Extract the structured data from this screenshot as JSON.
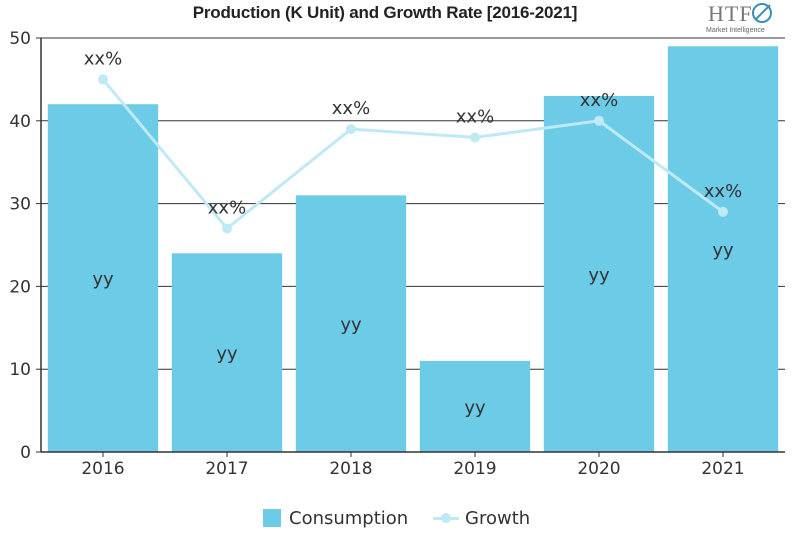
{
  "title": "Production (K Unit) and Growth Rate [2016-2021]",
  "logo": {
    "main": "HTF",
    "sub": "Market Intelligence"
  },
  "colors": {
    "bar": "#6ccbe6",
    "line": "#bfeaf5",
    "axis": "#333333",
    "grid": "#333333",
    "text": "#333333"
  },
  "chart_data": {
    "type": "bar",
    "categories": [
      "2016",
      "2017",
      "2018",
      "2019",
      "2020",
      "2021"
    ],
    "ylim": [
      0,
      50
    ],
    "yticks": [
      0,
      10,
      20,
      30,
      40,
      50
    ],
    "grid": true,
    "legend_position": "bottom",
    "series": [
      {
        "name": "Consumption",
        "type": "bar",
        "values": [
          42,
          24,
          31,
          11,
          43,
          49
        ],
        "labels": [
          "yy",
          "yy",
          "yy",
          "yy",
          "yy",
          "yy"
        ]
      },
      {
        "name": "Growth",
        "type": "line",
        "values": [
          45,
          27,
          39,
          38,
          40,
          29
        ],
        "labels": [
          "xx%",
          "xx%",
          "xx%",
          "xx%",
          "xx%",
          "xx%"
        ]
      }
    ]
  }
}
